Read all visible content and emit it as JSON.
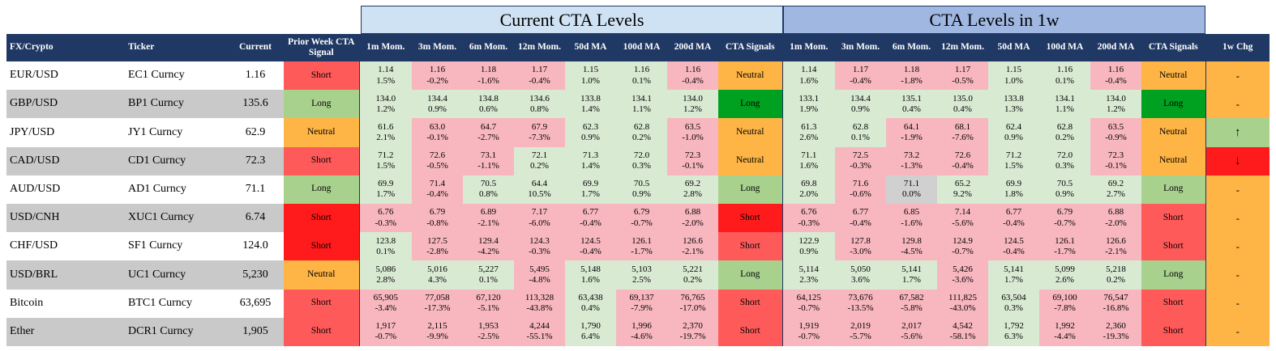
{
  "sections": {
    "current": "Current CTA Levels",
    "week": "CTA Levels in 1w"
  },
  "headers": [
    "FX/Crypto",
    "Ticker",
    "Current",
    "Prior Week CTA Signal",
    "1m Mom.",
    "3m Mom.",
    "6m Mom.",
    "12m Mom.",
    "50d MA",
    "100d MA",
    "200d MA",
    "CTA Signals",
    "1m Mom.",
    "3m Mom.",
    "6m Mom.",
    "12m Mom.",
    "50d MA",
    "100d MA",
    "200d MA",
    "CTA Signals",
    "1w Chg"
  ],
  "colors": {
    "header": "#1f3864",
    "green": "#d9ead3",
    "pink": "#f8b7bf",
    "short": "#ff5a5a",
    "long": "#a9d18e",
    "neutral": "#ffb545"
  },
  "rows": [
    {
      "fx": "EUR/USD",
      "ticker": "EC1 Curncy",
      "current": "1.16",
      "prior": "Short",
      "prior_c": "s-short",
      "cur": [
        [
          "1.14",
          "1.5%",
          "g"
        ],
        [
          "1.16",
          "-0.2%",
          "r"
        ],
        [
          "1.18",
          "-1.6%",
          "r"
        ],
        [
          "1.17",
          "-0.4%",
          "r"
        ],
        [
          "1.15",
          "1.0%",
          "g"
        ],
        [
          "1.16",
          "0.1%",
          "g"
        ],
        [
          "1.16",
          "-0.4%",
          "r"
        ]
      ],
      "sig": "Neutral",
      "sig_c": "s-neutral",
      "wk": [
        [
          "1.14",
          "1.6%",
          "g"
        ],
        [
          "1.17",
          "-0.4%",
          "r"
        ],
        [
          "1.18",
          "-1.8%",
          "r"
        ],
        [
          "1.17",
          "-0.5%",
          "r"
        ],
        [
          "1.15",
          "1.0%",
          "g"
        ],
        [
          "1.16",
          "0.1%",
          "g"
        ],
        [
          "1.16",
          "-0.4%",
          "r"
        ]
      ],
      "wsig": "Neutral",
      "wsig_c": "s-neutral",
      "chg": "-",
      "chg_c": "chg"
    },
    {
      "fx": "GBP/USD",
      "ticker": "BP1 Curncy",
      "current": "135.6",
      "prior": "Long",
      "prior_c": "s-long",
      "cur": [
        [
          "134.0",
          "1.2%",
          "g"
        ],
        [
          "134.4",
          "0.9%",
          "g"
        ],
        [
          "134.8",
          "0.6%",
          "g"
        ],
        [
          "134.6",
          "0.8%",
          "g"
        ],
        [
          "133.8",
          "1.4%",
          "g"
        ],
        [
          "134.1",
          "1.1%",
          "g"
        ],
        [
          "134.0",
          "1.2%",
          "g"
        ]
      ],
      "sig": "Long",
      "sig_c": "s-longd",
      "wk": [
        [
          "133.1",
          "1.9%",
          "g"
        ],
        [
          "134.4",
          "0.9%",
          "g"
        ],
        [
          "135.1",
          "0.4%",
          "g"
        ],
        [
          "135.0",
          "0.4%",
          "g"
        ],
        [
          "133.8",
          "1.3%",
          "g"
        ],
        [
          "134.1",
          "1.1%",
          "g"
        ],
        [
          "134.0",
          "1.2%",
          "g"
        ]
      ],
      "wsig": "Long",
      "wsig_c": "s-longd",
      "chg": "-",
      "chg_c": "chg"
    },
    {
      "fx": "JPY/USD",
      "ticker": "JY1 Curncy",
      "current": "62.9",
      "prior": "Neutral",
      "prior_c": "s-neutral",
      "cur": [
        [
          "61.6",
          "2.1%",
          "g"
        ],
        [
          "63.0",
          "-0.1%",
          "r"
        ],
        [
          "64.7",
          "-2.7%",
          "r"
        ],
        [
          "67.9",
          "-7.3%",
          "r"
        ],
        [
          "62.3",
          "0.9%",
          "g"
        ],
        [
          "62.8",
          "0.2%",
          "g"
        ],
        [
          "63.5",
          "-1.0%",
          "r"
        ]
      ],
      "sig": "Neutral",
      "sig_c": "s-neutral",
      "wk": [
        [
          "61.3",
          "2.6%",
          "g"
        ],
        [
          "62.8",
          "0.1%",
          "g"
        ],
        [
          "64.1",
          "-1.9%",
          "r"
        ],
        [
          "68.1",
          "-7.6%",
          "r"
        ],
        [
          "62.4",
          "0.9%",
          "g"
        ],
        [
          "62.8",
          "0.2%",
          "g"
        ],
        [
          "63.5",
          "-0.9%",
          "r"
        ]
      ],
      "wsig": "Neutral",
      "wsig_c": "s-neutral",
      "chg": "↑",
      "chg_c": "chg-up"
    },
    {
      "fx": "CAD/USD",
      "ticker": "CD1 Curncy",
      "current": "72.3",
      "prior": "Short",
      "prior_c": "s-short",
      "cur": [
        [
          "71.2",
          "1.5%",
          "g"
        ],
        [
          "72.6",
          "-0.5%",
          "r"
        ],
        [
          "73.1",
          "-1.1%",
          "r"
        ],
        [
          "72.1",
          "0.2%",
          "g"
        ],
        [
          "71.3",
          "1.4%",
          "g"
        ],
        [
          "72.0",
          "0.3%",
          "g"
        ],
        [
          "72.3",
          "-0.1%",
          "r"
        ]
      ],
      "sig": "Neutral",
      "sig_c": "s-neutral",
      "wk": [
        [
          "71.1",
          "1.6%",
          "g"
        ],
        [
          "72.5",
          "-0.3%",
          "r"
        ],
        [
          "73.2",
          "-1.3%",
          "r"
        ],
        [
          "72.6",
          "-0.4%",
          "r"
        ],
        [
          "71.2",
          "1.5%",
          "g"
        ],
        [
          "72.0",
          "0.3%",
          "g"
        ],
        [
          "72.3",
          "-0.1%",
          "r"
        ]
      ],
      "wsig": "Neutral",
      "wsig_c": "s-neutral",
      "chg": "↓",
      "chg_c": "chg-down"
    },
    {
      "fx": "AUD/USD",
      "ticker": "AD1 Curncy",
      "current": "71.1",
      "prior": "Long",
      "prior_c": "s-long",
      "cur": [
        [
          "69.9",
          "1.7%",
          "g"
        ],
        [
          "71.4",
          "-0.4%",
          "r"
        ],
        [
          "70.5",
          "0.8%",
          "g"
        ],
        [
          "64.4",
          "10.5%",
          "g"
        ],
        [
          "69.9",
          "1.7%",
          "g"
        ],
        [
          "70.5",
          "0.9%",
          "g"
        ],
        [
          "69.2",
          "2.8%",
          "g"
        ]
      ],
      "sig": "Long",
      "sig_c": "s-long",
      "wk": [
        [
          "69.8",
          "2.0%",
          "g"
        ],
        [
          "71.6",
          "-0.6%",
          "r"
        ],
        [
          "71.1",
          "0.0%",
          "n"
        ],
        [
          "65.2",
          "9.2%",
          "g"
        ],
        [
          "69.9",
          "1.8%",
          "g"
        ],
        [
          "70.5",
          "0.9%",
          "g"
        ],
        [
          "69.2",
          "2.7%",
          "g"
        ]
      ],
      "wsig": "Long",
      "wsig_c": "s-long",
      "chg": "-",
      "chg_c": "chg"
    },
    {
      "fx": "USD/CNH",
      "ticker": "XUC1 Curncy",
      "current": "6.74",
      "prior": "Short",
      "prior_c": "s-shortd",
      "cur": [
        [
          "6.76",
          "-0.3%",
          "r"
        ],
        [
          "6.79",
          "-0.8%",
          "r"
        ],
        [
          "6.89",
          "-2.1%",
          "r"
        ],
        [
          "7.17",
          "-6.0%",
          "r"
        ],
        [
          "6.77",
          "-0.4%",
          "r"
        ],
        [
          "6.79",
          "-0.7%",
          "r"
        ],
        [
          "6.88",
          "-2.0%",
          "r"
        ]
      ],
      "sig": "Short",
      "sig_c": "s-shortd",
      "wk": [
        [
          "6.76",
          "-0.3%",
          "r"
        ],
        [
          "6.77",
          "-0.4%",
          "r"
        ],
        [
          "6.85",
          "-1.6%",
          "r"
        ],
        [
          "7.14",
          "-5.6%",
          "r"
        ],
        [
          "6.77",
          "-0.4%",
          "r"
        ],
        [
          "6.79",
          "-0.7%",
          "r"
        ],
        [
          "6.88",
          "-2.0%",
          "r"
        ]
      ],
      "wsig": "Short",
      "wsig_c": "s-short",
      "chg": "-",
      "chg_c": "chg"
    },
    {
      "fx": "CHF/USD",
      "ticker": "SF1 Curncy",
      "current": "124.0",
      "prior": "Short",
      "prior_c": "s-shortd",
      "cur": [
        [
          "123.8",
          "0.1%",
          "g"
        ],
        [
          "127.5",
          "-2.8%",
          "r"
        ],
        [
          "129.4",
          "-4.2%",
          "r"
        ],
        [
          "124.3",
          "-0.3%",
          "r"
        ],
        [
          "124.5",
          "-0.4%",
          "r"
        ],
        [
          "126.1",
          "-1.7%",
          "r"
        ],
        [
          "126.6",
          "-2.1%",
          "r"
        ]
      ],
      "sig": "Short",
      "sig_c": "s-short",
      "wk": [
        [
          "122.9",
          "0.9%",
          "g"
        ],
        [
          "127.8",
          "-3.0%",
          "r"
        ],
        [
          "129.8",
          "-4.5%",
          "r"
        ],
        [
          "124.9",
          "-0.7%",
          "r"
        ],
        [
          "124.5",
          "-0.4%",
          "r"
        ],
        [
          "126.1",
          "-1.7%",
          "r"
        ],
        [
          "126.6",
          "-2.1%",
          "r"
        ]
      ],
      "wsig": "Short",
      "wsig_c": "s-short",
      "chg": "-",
      "chg_c": "chg"
    },
    {
      "fx": "USD/BRL",
      "ticker": "UC1 Curncy",
      "current": "5,230",
      "prior": "Neutral",
      "prior_c": "s-neutral",
      "cur": [
        [
          "5,086",
          "2.8%",
          "g"
        ],
        [
          "5,016",
          "4.3%",
          "g"
        ],
        [
          "5,227",
          "0.1%",
          "g"
        ],
        [
          "5,495",
          "-4.8%",
          "r"
        ],
        [
          "5,148",
          "1.6%",
          "g"
        ],
        [
          "5,103",
          "2.5%",
          "g"
        ],
        [
          "5,221",
          "0.2%",
          "g"
        ]
      ],
      "sig": "Long",
      "sig_c": "s-long",
      "wk": [
        [
          "5,114",
          "2.3%",
          "g"
        ],
        [
          "5,050",
          "3.6%",
          "g"
        ],
        [
          "5,141",
          "1.7%",
          "g"
        ],
        [
          "5,426",
          "-3.6%",
          "r"
        ],
        [
          "5,141",
          "1.7%",
          "g"
        ],
        [
          "5,099",
          "2.6%",
          "g"
        ],
        [
          "5,218",
          "0.2%",
          "g"
        ]
      ],
      "wsig": "Long",
      "wsig_c": "s-long",
      "chg": "-",
      "chg_c": "chg"
    },
    {
      "fx": "Bitcoin",
      "ticker": "BTC1 Curncy",
      "current": "63,695",
      "prior": "Short",
      "prior_c": "s-short",
      "cur": [
        [
          "65,905",
          "-3.4%",
          "r"
        ],
        [
          "77,058",
          "-17.3%",
          "r"
        ],
        [
          "67,120",
          "-5.1%",
          "r"
        ],
        [
          "113,328",
          "-43.8%",
          "r"
        ],
        [
          "63,438",
          "0.4%",
          "g"
        ],
        [
          "69,137",
          "-7.9%",
          "r"
        ],
        [
          "76,765",
          "-17.0%",
          "r"
        ]
      ],
      "sig": "Short",
      "sig_c": "s-short",
      "wk": [
        [
          "64,125",
          "-0.7%",
          "r"
        ],
        [
          "73,676",
          "-13.5%",
          "r"
        ],
        [
          "67,582",
          "-5.8%",
          "r"
        ],
        [
          "111,825",
          "-43.0%",
          "r"
        ],
        [
          "63,504",
          "0.3%",
          "g"
        ],
        [
          "69,100",
          "-7.8%",
          "r"
        ],
        [
          "76,547",
          "-16.8%",
          "r"
        ]
      ],
      "wsig": "Short",
      "wsig_c": "s-short",
      "chg": "-",
      "chg_c": "chg"
    },
    {
      "fx": "Ether",
      "ticker": "DCR1 Curncy",
      "current": "1,905",
      "prior": "Short",
      "prior_c": "s-short",
      "cur": [
        [
          "1,917",
          "-0.7%",
          "r"
        ],
        [
          "2,115",
          "-9.9%",
          "r"
        ],
        [
          "1,953",
          "-2.5%",
          "r"
        ],
        [
          "4,244",
          "-55.1%",
          "r"
        ],
        [
          "1,790",
          "6.4%",
          "g"
        ],
        [
          "1,996",
          "-4.6%",
          "r"
        ],
        [
          "2,370",
          "-19.7%",
          "r"
        ]
      ],
      "sig": "Short",
      "sig_c": "s-short",
      "wk": [
        [
          "1,919",
          "-0.7%",
          "r"
        ],
        [
          "2,019",
          "-5.7%",
          "r"
        ],
        [
          "2,017",
          "-5.6%",
          "r"
        ],
        [
          "4,542",
          "-58.1%",
          "r"
        ],
        [
          "1,792",
          "6.3%",
          "g"
        ],
        [
          "1,992",
          "-4.4%",
          "r"
        ],
        [
          "2,360",
          "-19.3%",
          "r"
        ]
      ],
      "wsig": "Short",
      "wsig_c": "s-short",
      "chg": "-",
      "chg_c": "chg"
    }
  ]
}
